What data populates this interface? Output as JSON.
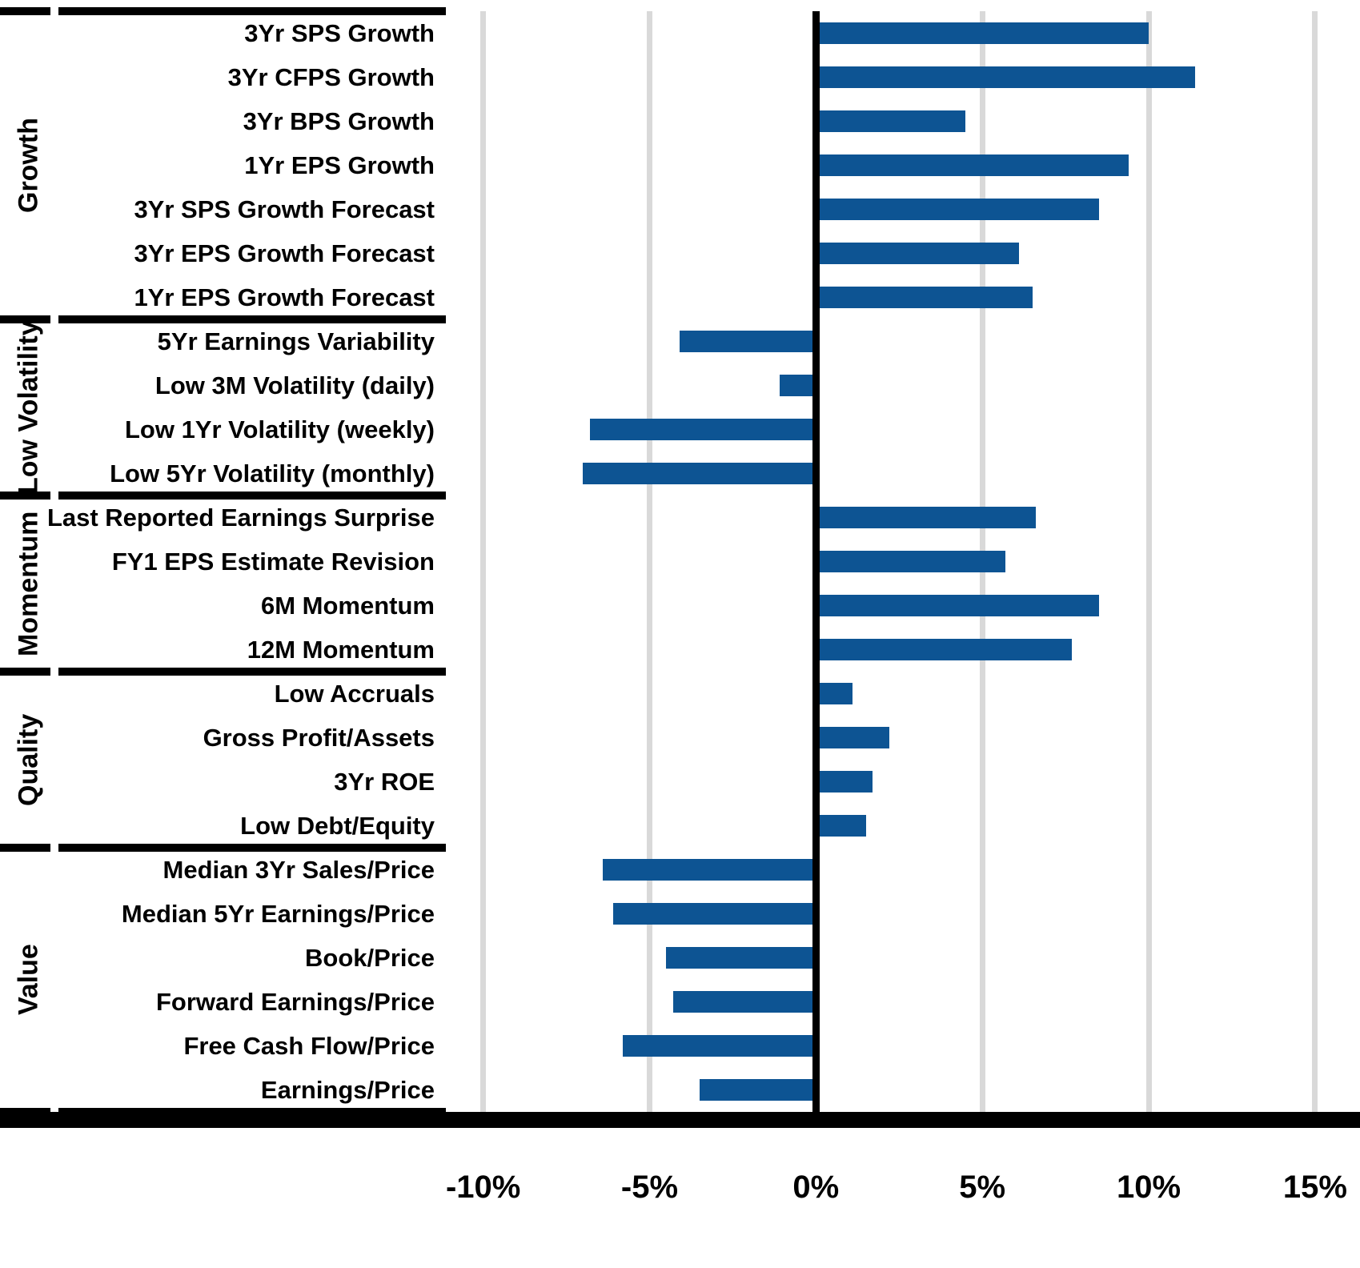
{
  "chart_data": {
    "type": "bar",
    "orientation": "horizontal",
    "title": "",
    "unit": "%",
    "grid": true,
    "legend": null,
    "x_axis": {
      "min": -11.05,
      "max": 16.35,
      "tick_values": [
        -10,
        -5,
        0,
        5,
        10,
        15
      ],
      "tick_labels": [
        "-10%",
        "-5%",
        "0%",
        "5%",
        "10%",
        "15%"
      ],
      "zero_line": true
    },
    "groups": [
      {
        "name": "Growth",
        "items": [
          {
            "label": "3Yr SPS Growth",
            "value": 10.0
          },
          {
            "label": "3Yr CFPS Growth",
            "value": 11.4
          },
          {
            "label": "3Yr BPS Growth",
            "value": 4.5
          },
          {
            "label": "1Yr EPS Growth",
            "value": 9.4
          },
          {
            "label": "3Yr SPS Growth Forecast",
            "value": 8.5
          },
          {
            "label": "3Yr EPS Growth Forecast",
            "value": 6.1
          },
          {
            "label": "1Yr EPS Growth Forecast",
            "value": 6.5
          }
        ]
      },
      {
        "name": "Low Volatility",
        "items": [
          {
            "label": "5Yr Earnings Variability",
            "value": -4.1
          },
          {
            "label": "Low 3M Volatility (daily)",
            "value": -1.1
          },
          {
            "label": "Low 1Yr Volatility (weekly)",
            "value": -6.8
          },
          {
            "label": "Low 5Yr Volatility (monthly)",
            "value": -7.0
          }
        ]
      },
      {
        "name": "Momentum",
        "items": [
          {
            "label": "Last Reported Earnings Surprise",
            "value": 6.6
          },
          {
            "label": "FY1 EPS Estimate Revision",
            "value": 5.7
          },
          {
            "label": "6M Momentum",
            "value": 8.5
          },
          {
            "label": "12M Momentum",
            "value": 7.7
          }
        ]
      },
      {
        "name": "Quality",
        "items": [
          {
            "label": "Low Accruals",
            "value": 1.1
          },
          {
            "label": "Gross Profit/Assets",
            "value": 2.2
          },
          {
            "label": "3Yr ROE",
            "value": 1.7
          },
          {
            "label": "Low Debt/Equity",
            "value": 1.5
          }
        ]
      },
      {
        "name": "Value",
        "items": [
          {
            "label": "Median 3Yr Sales/Price",
            "value": -6.4
          },
          {
            "label": "Median 5Yr Earnings/Price",
            "value": -6.1
          },
          {
            "label": "Book/Price",
            "value": -4.5
          },
          {
            "label": "Forward Earnings/Price",
            "value": -4.3
          },
          {
            "label": "Free Cash Flow/Price",
            "value": -5.8
          },
          {
            "label": "Earnings/Price",
            "value": -3.5
          }
        ]
      }
    ],
    "colors": {
      "bar": "#0d5493",
      "gridline": "#d9d9d9",
      "zero_line": "#000000",
      "separator": "#000000",
      "axis_bar": "#000000",
      "text": "#000000",
      "background": "#ffffff"
    }
  }
}
